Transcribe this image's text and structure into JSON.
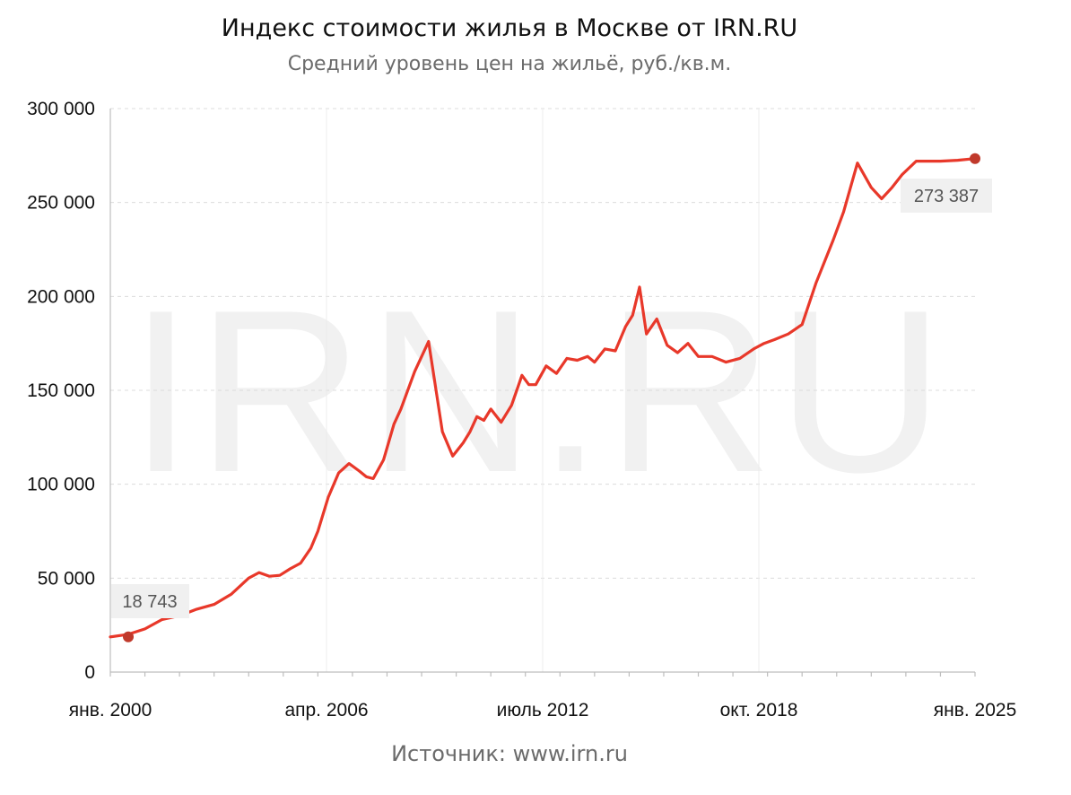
{
  "chart_data": {
    "type": "line",
    "title": "Индекс стоимости жилья в Москве от IRN.RU",
    "subtitle": "Средний уровень цен на жильё, руб./кв.м.",
    "source": "Источник: www.irn.ru",
    "watermark": "IRN.RU",
    "ylim": [
      0,
      300000
    ],
    "yticks": [
      0,
      50000,
      100000,
      150000,
      200000,
      250000,
      300000
    ],
    "ytick_labels": [
      "0",
      "50 000",
      "100 000",
      "150 000",
      "200 000",
      "250 000",
      "300 000"
    ],
    "xlim": [
      2000.0,
      2025.0
    ],
    "xticks": [
      2000.0,
      2006.25,
      2012.5,
      2018.75,
      2025.0
    ],
    "xtick_labels": [
      "янв. 2000",
      "апр. 2006",
      "июль 2012",
      "окт. 2018",
      "янв. 2025"
    ],
    "line_color": "#e8382a",
    "point_color": "#c0392b",
    "start_label": "18 743",
    "end_label": "273 387",
    "grid": true,
    "series": [
      {
        "x": [
          2000.0,
          2000.5,
          2001.0,
          2001.5,
          2002.0,
          2002.5,
          2003.0,
          2003.5,
          2004.0,
          2004.3,
          2004.6,
          2004.9,
          2005.2,
          2005.5,
          2005.8,
          2006.0,
          2006.3,
          2006.6,
          2006.9,
          2007.2,
          2007.4,
          2007.6,
          2007.9,
          2008.2,
          2008.4,
          2008.8,
          2009.2,
          2009.6,
          2009.9,
          2010.2,
          2010.4,
          2010.6,
          2010.8,
          2011.0,
          2011.3,
          2011.6,
          2011.9,
          2012.1,
          2012.3,
          2012.6,
          2012.9,
          2013.2,
          2013.5,
          2013.8,
          2014.0,
          2014.3,
          2014.6,
          2014.9,
          2015.1,
          2015.3,
          2015.5,
          2015.8,
          2016.1,
          2016.4,
          2016.7,
          2017.0,
          2017.4,
          2017.8,
          2018.2,
          2018.6,
          2018.9,
          2019.2,
          2019.6,
          2020.0,
          2020.4,
          2020.9,
          2021.2,
          2021.6,
          2022.0,
          2022.3,
          2022.6,
          2022.9,
          2023.3,
          2023.7,
          2024.0,
          2024.5,
          2025.0
        ],
        "values": [
          18743,
          20000,
          23000,
          28000,
          30000,
          33500,
          36000,
          41500,
          50000,
          53000,
          51000,
          51500,
          55000,
          58000,
          66000,
          75000,
          93000,
          106000,
          111000,
          107000,
          104000,
          103000,
          113000,
          132000,
          140000,
          160000,
          176000,
          128000,
          115000,
          122000,
          128000,
          136000,
          134000,
          140000,
          133000,
          142000,
          158000,
          153000,
          153000,
          163000,
          159000,
          167000,
          166000,
          168000,
          165000,
          172000,
          171000,
          184000,
          190000,
          205000,
          180000,
          188000,
          174000,
          170000,
          175000,
          168000,
          168000,
          165000,
          167000,
          172000,
          175000,
          177000,
          180000,
          185000,
          207000,
          230000,
          245000,
          271000,
          258000,
          252000,
          258000,
          265000,
          272000,
          272000,
          272000,
          272500,
          273387
        ]
      }
    ]
  }
}
